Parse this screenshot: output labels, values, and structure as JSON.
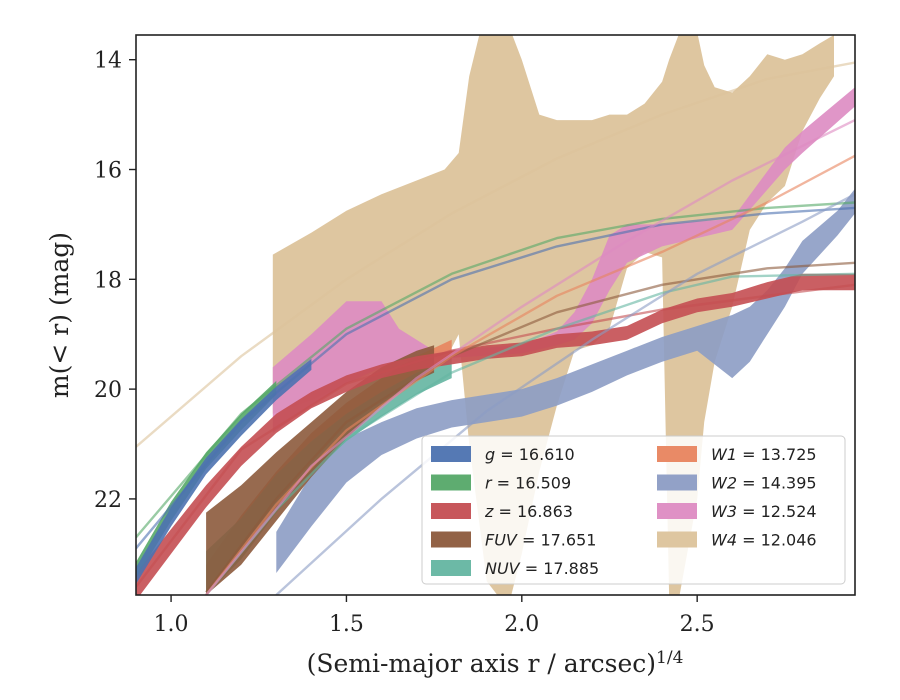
{
  "chart_data": {
    "type": "area",
    "xlabel": "(Semi-major axis r / arcsec)^{1/4}",
    "ylabel": "m(< r) (mag)",
    "xlim": [
      0.9,
      2.95
    ],
    "ylim": [
      23.75,
      13.55
    ],
    "y_inverted": true,
    "xticks": [
      1.0,
      1.5,
      2.0,
      2.5
    ],
    "xtick_labels": [
      "1.0",
      "1.5",
      "2.0",
      "2.5"
    ],
    "yticks": [
      14,
      16,
      18,
      20,
      22
    ],
    "ytick_labels": [
      "14",
      "16",
      "18",
      "20",
      "22"
    ],
    "grid": false,
    "legend_position": "lower-right",
    "legend_columns": 2,
    "series": [
      {
        "name": "g = 16.610",
        "legend_label": "g",
        "total": "16.610",
        "color": "#4c72b0",
        "band": [
          [
            0.9,
            23.25,
            23.55
          ],
          [
            1.0,
            22.15,
            22.5
          ],
          [
            1.1,
            21.25,
            21.55
          ],
          [
            1.2,
            20.55,
            20.85
          ],
          [
            1.3,
            19.95,
            20.2
          ],
          [
            1.4,
            19.45,
            19.65
          ]
        ],
        "fit": [
          [
            0.9,
            22.9
          ],
          [
            1.2,
            20.6
          ],
          [
            1.5,
            19.0
          ],
          [
            1.8,
            18.0
          ],
          [
            2.1,
            17.4
          ],
          [
            2.4,
            17.0
          ],
          [
            2.7,
            16.8
          ],
          [
            2.95,
            16.7
          ]
        ],
        "fit_visible_to": 2.95
      },
      {
        "name": "r = 16.509",
        "legend_label": "r",
        "total": "16.509",
        "color": "#55a868",
        "band": [
          [
            0.9,
            23.15,
            23.45
          ],
          [
            1.0,
            22.05,
            22.4
          ],
          [
            1.1,
            21.15,
            21.45
          ],
          [
            1.2,
            20.45,
            20.75
          ],
          [
            1.3,
            19.85,
            20.1
          ]
        ],
        "fit": [
          [
            0.9,
            22.7
          ],
          [
            1.2,
            20.45
          ],
          [
            1.5,
            18.9
          ],
          [
            1.8,
            17.9
          ],
          [
            2.1,
            17.25
          ],
          [
            2.4,
            16.9
          ],
          [
            2.7,
            16.7
          ],
          [
            2.95,
            16.6
          ]
        ],
        "fit_visible_to": 2.95
      },
      {
        "name": "z = 16.863",
        "legend_label": "z",
        "total": "16.863",
        "color": "#c44e52",
        "band": [
          [
            0.9,
            23.35,
            23.85
          ],
          [
            1.0,
            22.55,
            23.0
          ],
          [
            1.1,
            21.75,
            22.15
          ],
          [
            1.2,
            21.05,
            21.4
          ],
          [
            1.3,
            20.45,
            20.8
          ],
          [
            1.4,
            20.05,
            20.35
          ],
          [
            1.5,
            19.75,
            20.05
          ],
          [
            1.6,
            19.55,
            19.8
          ],
          [
            1.7,
            19.4,
            19.65
          ],
          [
            1.8,
            19.3,
            19.55
          ],
          [
            1.9,
            19.2,
            19.45
          ],
          [
            2.0,
            19.15,
            19.4
          ],
          [
            2.1,
            19.0,
            19.25
          ],
          [
            2.2,
            18.95,
            19.2
          ],
          [
            2.3,
            18.85,
            19.1
          ],
          [
            2.4,
            18.55,
            18.8
          ],
          [
            2.5,
            18.35,
            18.6
          ],
          [
            2.6,
            18.25,
            18.5
          ],
          [
            2.7,
            18.05,
            18.35
          ],
          [
            2.8,
            17.9,
            18.2
          ],
          [
            2.95,
            17.9,
            18.2
          ]
        ],
        "fit": [
          [
            0.9,
            23.6
          ],
          [
            1.2,
            21.1
          ],
          [
            1.5,
            19.9
          ],
          [
            1.8,
            19.3
          ],
          [
            2.1,
            18.9
          ],
          [
            2.4,
            18.55
          ],
          [
            2.7,
            18.3
          ],
          [
            2.95,
            18.1
          ]
        ],
        "fit_visible_to": 2.95
      },
      {
        "name": "FUV = 17.651",
        "legend_label": "FUV",
        "total": "17.651",
        "color": "#8c5a3c",
        "band": [
          [
            1.1,
            22.25,
            23.75
          ],
          [
            1.2,
            21.75,
            23.2
          ],
          [
            1.3,
            21.15,
            22.4
          ],
          [
            1.4,
            20.6,
            21.6
          ],
          [
            1.5,
            20.05,
            20.9
          ],
          [
            1.6,
            19.6,
            20.3
          ],
          [
            1.7,
            19.3,
            19.85
          ],
          [
            1.75,
            19.2,
            19.7
          ]
        ],
        "fit": [
          [
            1.1,
            23.7
          ],
          [
            1.3,
            22.0
          ],
          [
            1.5,
            20.6
          ],
          [
            1.8,
            19.4
          ],
          [
            2.1,
            18.6
          ],
          [
            2.4,
            18.1
          ],
          [
            2.7,
            17.8
          ],
          [
            2.95,
            17.7
          ]
        ],
        "fit_visible_to": 2.95
      },
      {
        "name": "NUV = 17.885",
        "legend_label": "NUV",
        "total": "17.885",
        "color": "#64b5a1",
        "band": [
          [
            1.1,
            22.95,
            23.75
          ],
          [
            1.2,
            22.35,
            23.1
          ],
          [
            1.3,
            21.55,
            22.25
          ],
          [
            1.4,
            20.95,
            21.55
          ],
          [
            1.5,
            20.45,
            20.95
          ],
          [
            1.6,
            20.05,
            20.5
          ],
          [
            1.7,
            19.7,
            20.1
          ],
          [
            1.8,
            19.45,
            19.8
          ]
        ],
        "fit": [
          [
            1.1,
            23.75
          ],
          [
            1.3,
            22.2
          ],
          [
            1.5,
            20.9
          ],
          [
            1.8,
            19.7
          ],
          [
            2.1,
            18.9
          ],
          [
            2.4,
            18.25
          ],
          [
            2.6,
            17.95
          ],
          [
            2.95,
            17.9
          ]
        ],
        "fit_visible_to": 2.95
      },
      {
        "name": "W1 = 13.725",
        "legend_label": "W1",
        "total": "13.725",
        "color": "#e8845e",
        "band": [
          [
            1.1,
            23.2,
            23.75
          ],
          [
            1.2,
            22.3,
            22.9
          ],
          [
            1.3,
            21.5,
            22.0
          ],
          [
            1.4,
            20.8,
            21.3
          ],
          [
            1.5,
            20.25,
            20.7
          ],
          [
            1.6,
            19.8,
            20.2
          ],
          [
            1.7,
            19.4,
            19.8
          ],
          [
            1.8,
            19.1,
            19.45
          ]
        ],
        "fit": [
          [
            1.1,
            23.75
          ],
          [
            1.3,
            22.1
          ],
          [
            1.5,
            20.75
          ],
          [
            1.8,
            19.4
          ],
          [
            2.1,
            18.3
          ],
          [
            2.4,
            17.5
          ],
          [
            2.7,
            16.6
          ],
          [
            2.95,
            15.75
          ]
        ],
        "fit_visible_to": 2.95
      },
      {
        "name": "W2 = 14.395",
        "legend_label": "W2",
        "total": "14.395",
        "color": "#8c9cc4",
        "band": [
          [
            1.3,
            22.6,
            23.35
          ],
          [
            1.4,
            21.55,
            22.5
          ],
          [
            1.5,
            20.9,
            21.7
          ],
          [
            1.6,
            20.6,
            21.2
          ],
          [
            1.7,
            20.35,
            20.9
          ],
          [
            1.8,
            20.2,
            20.7
          ],
          [
            1.9,
            20.1,
            20.6
          ],
          [
            2.0,
            20.0,
            20.5
          ],
          [
            2.1,
            19.8,
            20.3
          ],
          [
            2.2,
            19.55,
            20.05
          ],
          [
            2.3,
            19.3,
            19.75
          ],
          [
            2.4,
            19.05,
            19.5
          ],
          [
            2.5,
            18.85,
            19.3
          ],
          [
            2.6,
            18.65,
            19.8
          ],
          [
            2.65,
            18.5,
            19.5
          ],
          [
            2.7,
            18.2,
            19.0
          ],
          [
            2.75,
            17.8,
            18.5
          ],
          [
            2.8,
            17.3,
            17.9
          ],
          [
            2.9,
            16.75,
            17.2
          ],
          [
            2.95,
            16.35,
            16.8
          ]
        ],
        "fit": [
          [
            1.3,
            23.75
          ],
          [
            1.6,
            22.0
          ],
          [
            1.9,
            20.4
          ],
          [
            2.2,
            19.1
          ],
          [
            2.5,
            17.9
          ],
          [
            2.8,
            16.95
          ],
          [
            2.95,
            16.45
          ]
        ],
        "fit_visible_to": 2.95
      },
      {
        "name": "W3 = 12.524",
        "legend_label": "W3",
        "total": "12.524",
        "color": "#dd8bc2",
        "band": [
          [
            1.29,
            19.6,
            20.8
          ],
          [
            1.4,
            19.0,
            20.3
          ],
          [
            1.5,
            18.4,
            19.9
          ],
          [
            1.6,
            18.4,
            19.6
          ],
          [
            1.65,
            18.9,
            19.5
          ],
          [
            1.75,
            19.3,
            19.45
          ],
          [
            2.0,
            19.2,
            19.35
          ],
          [
            2.1,
            18.95,
            19.2
          ],
          [
            2.15,
            18.6,
            19.1
          ],
          [
            2.2,
            18.0,
            18.8
          ],
          [
            2.25,
            17.2,
            18.2
          ],
          [
            2.3,
            17.0,
            17.7
          ],
          [
            2.4,
            17.0,
            17.4
          ],
          [
            2.6,
            16.9,
            17.1
          ],
          [
            2.75,
            15.6,
            16.0
          ],
          [
            2.8,
            15.3,
            15.7
          ],
          [
            2.95,
            14.5,
            14.85
          ]
        ],
        "fit": [
          [
            1.1,
            23.75
          ],
          [
            1.4,
            21.4
          ],
          [
            1.7,
            19.8
          ],
          [
            2.0,
            18.5
          ],
          [
            2.3,
            17.3
          ],
          [
            2.6,
            16.2
          ],
          [
            2.95,
            15.1
          ]
        ],
        "fit_visible_to": 2.95
      },
      {
        "name": "W4 = 12.046",
        "legend_label": "W4",
        "total": "12.046",
        "color": "#dcc39b",
        "band": [
          [
            1.29,
            17.55,
            20.45
          ],
          [
            1.4,
            17.15,
            20.2
          ],
          [
            1.5,
            16.75,
            19.9
          ],
          [
            1.6,
            16.45,
            19.65
          ],
          [
            1.7,
            16.2,
            19.6
          ],
          [
            1.78,
            16.0,
            19.5
          ],
          [
            1.82,
            15.7,
            19.0
          ],
          [
            1.85,
            14.3,
            21.0
          ],
          [
            1.9,
            13.0,
            23.5
          ],
          [
            1.93,
            12.9,
            23.75
          ],
          [
            1.97,
            13.5,
            23.75
          ],
          [
            2.0,
            14.0,
            23.0
          ],
          [
            2.05,
            15.0,
            21.5
          ],
          [
            2.1,
            15.1,
            20.3
          ],
          [
            2.15,
            15.1,
            19.3
          ],
          [
            2.2,
            15.1,
            19.2
          ],
          [
            2.25,
            15.0,
            18.9
          ],
          [
            2.3,
            15.0,
            17.8
          ],
          [
            2.35,
            14.8,
            17.5
          ],
          [
            2.4,
            14.4,
            17.6
          ],
          [
            2.42,
            14.0,
            23.75
          ],
          [
            2.45,
            13.5,
            23.75
          ],
          [
            2.5,
            13.5,
            22.0
          ],
          [
            2.52,
            14.1,
            20.6
          ],
          [
            2.55,
            14.5,
            19.5
          ],
          [
            2.6,
            14.6,
            18.5
          ],
          [
            2.65,
            14.3,
            17.1
          ],
          [
            2.7,
            13.9,
            16.6
          ],
          [
            2.75,
            14.0,
            16.3
          ],
          [
            2.8,
            13.9,
            15.3
          ],
          [
            2.85,
            13.7,
            14.7
          ],
          [
            2.89,
            13.55,
            14.3
          ]
        ],
        "fit": [
          [
            0.9,
            21.05
          ],
          [
            1.2,
            19.4
          ],
          [
            1.5,
            18.0
          ],
          [
            1.8,
            16.8
          ],
          [
            2.1,
            15.8
          ],
          [
            2.4,
            15.0
          ],
          [
            2.7,
            14.35
          ],
          [
            2.95,
            14.05
          ]
        ],
        "fit_visible_to": 2.95
      }
    ]
  }
}
